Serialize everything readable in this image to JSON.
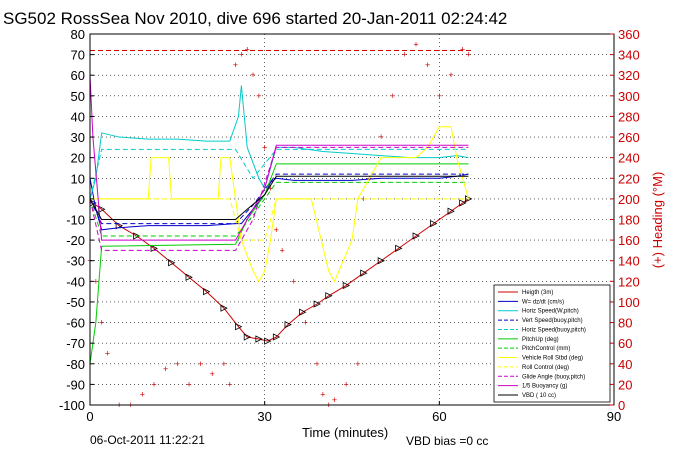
{
  "chart_data": {
    "type": "line",
    "title": "SG502 RossSea Nov 2010, dive 696 started 20-Jan-2011 02:24:42",
    "xlabel": "Time (minutes)",
    "ylabel_right": "(+) Heading (°M)",
    "xlim": [
      0,
      90
    ],
    "ylim": [
      -100,
      80
    ],
    "ylim_right": [
      0,
      360
    ],
    "x_ticks": [
      "0",
      "30",
      "60",
      "90"
    ],
    "y_ticks": [
      "-100",
      "-90",
      "-80",
      "-70",
      "-60",
      "-50",
      "-40",
      "-30",
      "-20",
      "-10",
      "0",
      "10",
      "20",
      "30",
      "40",
      "50",
      "60",
      "70",
      "80"
    ],
    "y_ticks_right": [
      "0",
      "20",
      "40",
      "60",
      "80",
      "100",
      "120",
      "140",
      "160",
      "180",
      "200",
      "220",
      "240",
      "260",
      "280",
      "300",
      "320",
      "340",
      "360"
    ],
    "grid": true,
    "legend_position": "bottom-right",
    "series": [
      {
        "name": "Heigth (3m)",
        "color": "#cc0000",
        "style": "solid-markers",
        "x": [
          0.5,
          2,
          5,
          8,
          11,
          14,
          17,
          20,
          23,
          25.5,
          27,
          29,
          30.5,
          32,
          34,
          36.5,
          39,
          41,
          44,
          47,
          50,
          53,
          56,
          59,
          62,
          64,
          65
        ],
        "y": [
          -2,
          -5,
          -13,
          -18,
          -24,
          -31,
          -38,
          -45,
          -53,
          -62,
          -67,
          -68,
          -69,
          -67,
          -61,
          -55,
          -51,
          -47,
          -42,
          -36,
          -30,
          -24,
          -18,
          -12,
          -6,
          -2,
          0
        ]
      },
      {
        "name": "W= dz/dt (cm/s)",
        "color": "#0000cc",
        "style": "solid",
        "x": [
          0,
          1,
          2,
          5,
          10,
          15,
          20,
          25,
          26,
          28,
          30,
          31,
          32,
          35,
          40,
          45,
          50,
          55,
          60,
          63,
          65
        ],
        "y": [
          10,
          -5,
          -15,
          -14,
          -13,
          -13,
          -13,
          -12,
          -12,
          -5,
          2,
          8,
          10,
          9,
          9,
          9,
          10,
          10,
          10,
          11,
          12
        ]
      },
      {
        "name": "Horiz Speed(W,pitch)",
        "color": "#00cccc",
        "style": "solid",
        "x": [
          0,
          1,
          2,
          5,
          10,
          15,
          20,
          24,
          25.5,
          26,
          27,
          29,
          30,
          31,
          32,
          35,
          40,
          45,
          50,
          55,
          60,
          63,
          65
        ],
        "y": [
          0,
          10,
          32,
          30,
          29,
          29,
          28,
          28,
          40,
          55,
          25,
          10,
          5,
          15,
          25,
          25,
          23,
          22,
          21,
          20,
          20,
          21,
          20
        ]
      },
      {
        "name": "Vert Speed(buoy,pitch)",
        "color": "#0000cc",
        "style": "dashed",
        "x": [
          0,
          2,
          25,
          28,
          32,
          65
        ],
        "y": [
          0,
          -12,
          -12,
          -3,
          12,
          12
        ]
      },
      {
        "name": "Horiz Speed(buoy,pitch)",
        "color": "#00cccc",
        "style": "dashed",
        "x": [
          0,
          2,
          25,
          28,
          32,
          65
        ],
        "y": [
          0,
          24,
          24,
          10,
          24,
          24
        ]
      },
      {
        "name": "PitchUp (deg)",
        "color": "#00cc00",
        "style": "solid",
        "x": [
          0,
          1,
          2,
          25,
          27,
          30,
          32,
          65
        ],
        "y": [
          -80,
          -60,
          -23,
          -22,
          -10,
          2,
          17,
          17
        ]
      },
      {
        "name": "PitchControl (mm)",
        "color": "#00cc00",
        "style": "dashed",
        "x": [
          0,
          2,
          25,
          28,
          32,
          65
        ],
        "y": [
          0,
          -18,
          -18,
          -8,
          8,
          8
        ]
      },
      {
        "name": "Vehicle Roll Stbd (deg)",
        "color": "#ffff00",
        "style": "solid",
        "x": [
          0,
          2,
          10,
          10.5,
          13.5,
          14,
          22,
          22.5,
          24,
          25,
          26,
          28,
          29,
          30,
          31,
          32,
          34,
          38,
          41,
          42,
          45,
          46,
          48,
          50,
          52,
          56,
          58,
          60,
          62,
          63,
          65
        ],
        "y": [
          0,
          0,
          0,
          20,
          20,
          0,
          0,
          20,
          20,
          0,
          -20,
          -35,
          -40,
          -35,
          -20,
          0,
          0,
          0,
          -35,
          -40,
          -20,
          0,
          10,
          20,
          20,
          20,
          25,
          35,
          35,
          20,
          0
        ]
      },
      {
        "name": "Roll Control (deg)",
        "color": "#ffff00",
        "style": "dashed",
        "x": [
          0,
          2,
          24,
          26,
          30,
          32,
          65
        ],
        "y": [
          0,
          0,
          0,
          -20,
          -20,
          0,
          0
        ]
      },
      {
        "name": "Glide Angle (buoy,pitch)",
        "color": "#cc00cc",
        "style": "dashed",
        "x": [
          0,
          2,
          25,
          28,
          32,
          65
        ],
        "y": [
          0,
          -25,
          -25,
          -10,
          25,
          25
        ]
      },
      {
        "name": "1/5 Buoyancy (g)",
        "color": "#cc00cc",
        "style": "solid",
        "x": [
          0,
          0.5,
          2,
          25,
          27,
          30,
          32,
          65
        ],
        "y": [
          60,
          30,
          -20,
          -20,
          -10,
          5,
          26,
          26
        ]
      },
      {
        "name": "VBD ( 10 cc)",
        "color": "#000000",
        "style": "solid",
        "x": [
          0,
          1,
          2,
          25,
          27,
          30,
          32,
          65
        ],
        "y": [
          0,
          -5,
          -10,
          -10,
          -5,
          2,
          11,
          11
        ]
      }
    ],
    "heading_series": {
      "color": "#cc0000",
      "marker": "+",
      "x": [
        0,
        1,
        2,
        3,
        5,
        7,
        9,
        11,
        13,
        15,
        17,
        19,
        21,
        23,
        24,
        25,
        26,
        27,
        28,
        29,
        30,
        31,
        32,
        33,
        35,
        37,
        39,
        40,
        41,
        42,
        44,
        46,
        47,
        48,
        50,
        52,
        54,
        56,
        58,
        60,
        62,
        64,
        65
      ],
      "y": [
        140,
        120,
        80,
        50,
        0,
        0,
        10,
        20,
        35,
        40,
        20,
        40,
        30,
        40,
        20,
        330,
        340,
        345,
        320,
        300,
        250,
        210,
        170,
        150,
        120,
        80,
        40,
        10,
        0,
        5,
        20,
        40,
        200,
        220,
        260,
        300,
        340,
        350,
        330,
        300,
        320,
        345,
        340
      ]
    },
    "heading_reference": 344,
    "annotations": {
      "date": "06-Oct-2011 11:22:21",
      "vbd_bias": "VBD bias =0 cc"
    }
  }
}
